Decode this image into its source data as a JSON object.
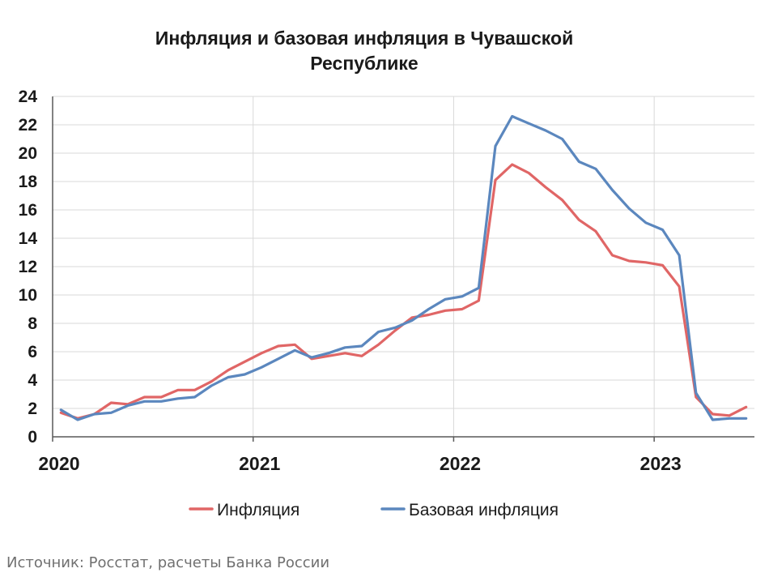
{
  "chart_data": {
    "type": "line",
    "title": "Инфляция и базовая инфляция в Чувашской Республике",
    "xlabel": "",
    "ylabel": "",
    "ylim": [
      0,
      24
    ],
    "yticks": [
      "0",
      "2",
      "4",
      "6",
      "8",
      "10",
      "12",
      "14",
      "16",
      "18",
      "20",
      "22",
      "24"
    ],
    "xticks": [
      "2020",
      "2021",
      "2022",
      "2023"
    ],
    "grid": true,
    "legend_position": "bottom",
    "x": [
      "2020-01",
      "2020-02",
      "2020-03",
      "2020-04",
      "2020-05",
      "2020-06",
      "2020-07",
      "2020-08",
      "2020-09",
      "2020-10",
      "2020-11",
      "2020-12",
      "2021-01",
      "2021-02",
      "2021-03",
      "2021-04",
      "2021-05",
      "2021-06",
      "2021-07",
      "2021-08",
      "2021-09",
      "2021-10",
      "2021-11",
      "2021-12",
      "2022-01",
      "2022-02",
      "2022-03",
      "2022-04",
      "2022-05",
      "2022-06",
      "2022-07",
      "2022-08",
      "2022-09",
      "2022-10",
      "2022-11",
      "2022-12",
      "2023-01",
      "2023-02",
      "2023-03",
      "2023-04",
      "2023-05",
      "2023-06"
    ],
    "series": [
      {
        "name": "Инфляция",
        "color": "#e06666",
        "values": [
          1.7,
          1.3,
          1.6,
          2.4,
          2.3,
          2.8,
          2.8,
          3.3,
          3.3,
          3.9,
          4.7,
          5.3,
          5.9,
          6.4,
          6.5,
          5.5,
          5.7,
          5.9,
          5.7,
          6.5,
          7.5,
          8.4,
          8.6,
          8.9,
          9.0,
          9.6,
          18.1,
          19.2,
          18.6,
          17.6,
          16.7,
          15.3,
          14.5,
          12.8,
          12.4,
          12.3,
          12.1,
          10.6,
          2.8,
          1.6,
          1.5,
          2.1
        ]
      },
      {
        "name": "Базовая инфляция",
        "color": "#5b87be",
        "values": [
          1.9,
          1.2,
          1.6,
          1.7,
          2.2,
          2.5,
          2.5,
          2.7,
          2.8,
          3.6,
          4.2,
          4.4,
          4.9,
          5.5,
          6.1,
          5.6,
          5.9,
          6.3,
          6.4,
          7.4,
          7.7,
          8.2,
          9.0,
          9.7,
          9.9,
          10.5,
          20.5,
          22.6,
          22.1,
          21.6,
          21.0,
          19.4,
          18.9,
          17.4,
          16.1,
          15.1,
          14.6,
          12.8,
          3.1,
          1.2,
          1.3,
          1.3
        ]
      }
    ]
  },
  "source": "Источник: Росстат, расчеты Банка России"
}
